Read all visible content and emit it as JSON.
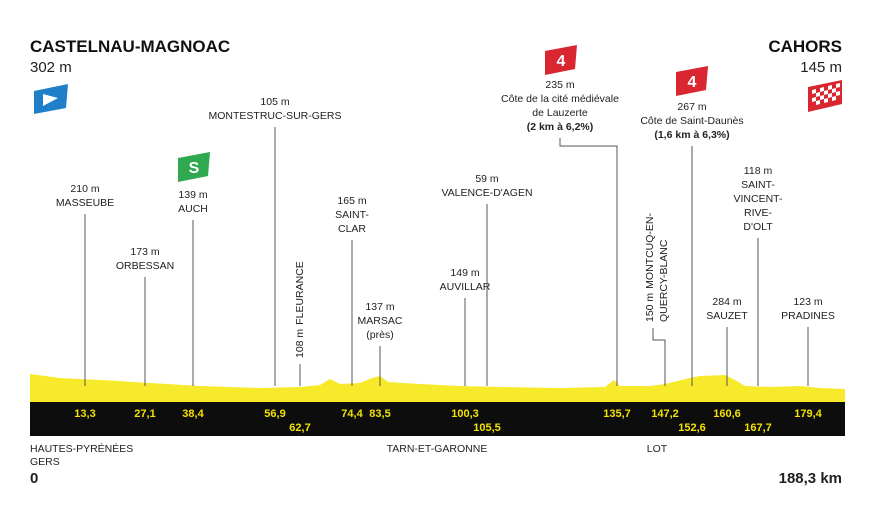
{
  "start": {
    "name": "CASTELNAU-MAGNOAC",
    "altitude": "302 m",
    "km": "0"
  },
  "finish": {
    "name": "CAHORS",
    "altitude": "145 m",
    "km": "188,3 km"
  },
  "waypoints": [
    {
      "altitude": "210 m",
      "name": [
        "MASSEUBE"
      ],
      "km": "13,3"
    },
    {
      "altitude": "173 m",
      "name": [
        "ORBESSAN"
      ],
      "km": "27,1"
    },
    {
      "altitude": "139 m",
      "name": [
        "AUCH"
      ],
      "km": "38,4",
      "badge": "S"
    },
    {
      "altitude": "105 m",
      "name": [
        "MONTESTRUC-SUR-GERS"
      ],
      "km": "56,9"
    },
    {
      "altitude": "108 m",
      "name": [
        "FLEURANCE"
      ],
      "km": "62,7"
    },
    {
      "altitude": "165 m",
      "name": [
        "SAINT-",
        "CLAR"
      ],
      "km": "74,4"
    },
    {
      "altitude": "137 m",
      "name": [
        "MARSAC",
        "(près)"
      ],
      "km": "83,5"
    },
    {
      "altitude": "149 m",
      "name": [
        "AUVILLAR"
      ],
      "km": "100,3"
    },
    {
      "altitude": "59 m",
      "name": [
        "VALENCE-D'AGEN"
      ],
      "km": "105,5"
    },
    {
      "altitude": "235 m",
      "name": [
        "Côte de la cité médiévale",
        "de Lauzerte"
      ],
      "detail": "(2 km à 6,2%)",
      "km": "135,7",
      "badge": "4"
    },
    {
      "altitude": "150 m",
      "name": [
        "MONTCUQ-EN-",
        "QUERCY-BLANC"
      ],
      "km": "147,2"
    },
    {
      "altitude": "267 m",
      "name": [
        "Côte de Saint-Daunès"
      ],
      "detail": "(1,6 km à 6,3%)",
      "km": "152,6",
      "badge": "4"
    },
    {
      "altitude": "284 m",
      "name": [
        "SAUZET"
      ],
      "km": "160,6"
    },
    {
      "altitude": "118 m",
      "name": [
        "SAINT-",
        "VINCENT-",
        "RIVE-",
        "D'OLT"
      ],
      "km": "167,7"
    },
    {
      "altitude": "123 m",
      "name": [
        "PRADINES"
      ],
      "km": "179,4"
    }
  ],
  "regions": [
    [
      "HAUTES-PYRÉNÉES",
      "GERS"
    ],
    [
      "TARN-ET-GARONNE"
    ],
    [
      "LOT"
    ]
  ]
}
